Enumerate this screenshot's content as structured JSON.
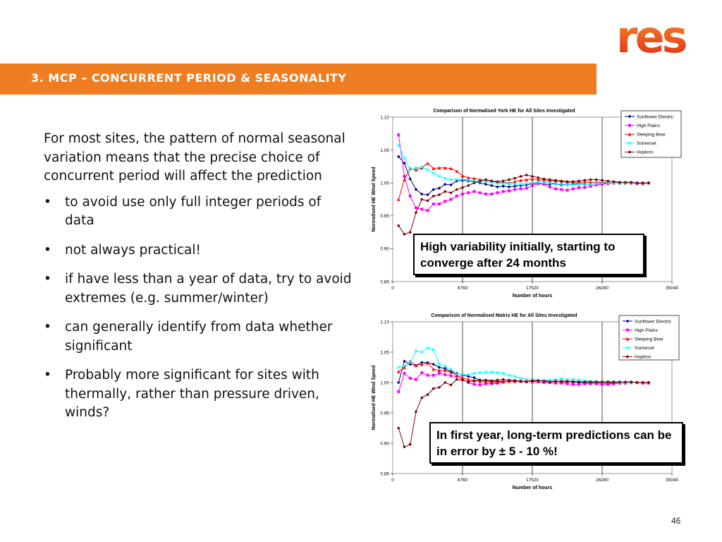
{
  "brand": {
    "logo_text": "res",
    "colors": {
      "orange": "#ef7d22",
      "logo_orange": "#f07f1f",
      "logo_red": "#e2231a"
    }
  },
  "header": {
    "title": "3.   MCP – CONCURRENT PERIOD & SEASONALITY"
  },
  "body": {
    "lead": "For most sites, the pattern of normal seasonal variation means that the precise choice of concurrent period will affect the prediction",
    "bullets": [
      "to avoid use only full integer periods of data",
      "not always practical!",
      "if have less than a year of data, try to avoid extremes (e.g. summer/winter)",
      "can generally identify from data whether significant",
      "Probably more significant for sites with thermally, rather than pressure driven, winds?"
    ]
  },
  "callouts": [
    "High variability initially, starting to converge after 24 months",
    "In first year, long-term predictions can be in error by ± 5 - 10 %!"
  ],
  "page_number": "46",
  "chart_data": [
    {
      "type": "line",
      "title": "Comparison of Normalised York HE for All Sites Investigated",
      "xlabel": "Number of hours",
      "ylabel": "Normalised HE Wind Speed",
      "xlim": [
        0,
        35040
      ],
      "ylim": [
        0.85,
        1.1
      ],
      "xticks": [
        0,
        8760,
        17520,
        26280,
        35040
      ],
      "xtick_labels": [
        "0",
        "8760",
        "17520",
        "26280",
        "35040"
      ],
      "yticks": [
        0.85,
        0.9,
        0.95,
        1.0,
        1.05,
        1.1
      ],
      "ytick_labels": [
        "0.85",
        "0.90",
        "0.95",
        "1.00",
        "1.05",
        "1.10"
      ],
      "grid": "vertical",
      "legend": "top-right",
      "x": [
        730,
        1460,
        2190,
        2920,
        3650,
        4380,
        5110,
        5840,
        6570,
        7300,
        8030,
        8760,
        9490,
        10220,
        10950,
        11680,
        12410,
        13140,
        13870,
        14600,
        15330,
        16060,
        16790,
        17520,
        18250,
        18980,
        19710,
        20440,
        21170,
        21900,
        22630,
        23360,
        24090,
        24820,
        25550,
        26280,
        27010,
        27740,
        28470,
        29200,
        29930,
        30660,
        31390,
        32120
      ],
      "series": [
        {
          "name": "Sunflower Electric",
          "color": "#000080",
          "marker": "diamond",
          "values": [
            1.04,
            1.03,
            1.006,
            0.99,
            0.983,
            0.982,
            0.99,
            0.992,
            0.998,
            0.997,
            1.003,
            1.004,
            1.003,
            1.002,
            1.0,
            0.998,
            0.996,
            0.994,
            0.995,
            0.994,
            0.995,
            0.996,
            0.997,
            0.999,
            1.0,
            0.998,
            0.998,
            0.999,
            0.997,
            0.998,
            0.998,
            0.999,
            0.998,
            0.998,
            0.999,
            0.999,
            1.0,
            1.0,
            1.001,
            1.0,
            1.0,
            1.0,
            0.999,
            1.0
          ]
        },
        {
          "name": "High Plains",
          "color": "#ff00ff",
          "marker": "square",
          "values": [
            1.073,
            1.01,
            0.98,
            0.962,
            0.96,
            0.958,
            0.968,
            0.968,
            0.972,
            0.975,
            0.98,
            0.983,
            0.985,
            0.987,
            0.985,
            0.983,
            0.983,
            0.985,
            0.987,
            0.988,
            0.99,
            0.991,
            0.992,
            0.996,
            0.999,
            0.998,
            0.994,
            0.991,
            0.99,
            0.989,
            0.991,
            0.993,
            0.993,
            0.995,
            0.997,
            0.998,
            0.999,
            1.0,
            1.0,
            1.0,
            1.0,
            0.999,
            0.999,
            1.0
          ]
        },
        {
          "name": "Sleeping Bear",
          "color": "#ff0000",
          "marker": "triangle",
          "values": [
            0.975,
            1.005,
            1.022,
            1.02,
            1.023,
            1.03,
            1.022,
            1.023,
            1.023,
            1.022,
            1.018,
            1.011,
            1.008,
            1.007,
            1.005,
            1.004,
            1.003,
            1.001,
            1.001,
            1.0,
            1.002,
            1.004,
            1.005,
            1.006,
            1.005,
            1.004,
            1.003,
            1.003,
            1.002,
            1.001,
            1.001,
            1.001,
            1.001,
            1.001,
            1.001,
            1.001,
            1.001,
            1.0,
            1.0,
            1.0,
            1.0,
            1.0,
            1.0,
            1.0
          ]
        },
        {
          "name": "Somerset",
          "color": "#00ffff",
          "marker": "cross",
          "values": [
            1.058,
            1.038,
            1.02,
            1.023,
            1.024,
            1.02,
            1.015,
            1.01,
            1.007,
            1.005,
            1.005,
            1.006,
            1.004,
            1.003,
            1.002,
            1.002,
            1.001,
            1.0,
            0.999,
            0.999,
            0.998,
            0.998,
            0.999,
            1.0,
            1.001,
            1.001,
            1.0,
            0.999,
            0.998,
            0.998,
            0.997,
            0.998,
            0.998,
            0.998,
            0.999,
            1.0,
            1.0,
            1.0,
            1.0,
            1.0,
            1.0,
            1.0,
            1.0,
            1.0
          ]
        },
        {
          "name": "Hopkins",
          "color": "#800000",
          "marker": "circle",
          "values": [
            0.935,
            0.922,
            0.925,
            0.955,
            0.975,
            0.973,
            0.98,
            0.982,
            0.987,
            0.985,
            0.99,
            0.993,
            0.996,
            1.0,
            1.003,
            1.005,
            1.003,
            1.002,
            1.003,
            1.005,
            1.007,
            1.01,
            1.012,
            1.01,
            1.008,
            1.006,
            1.005,
            1.004,
            1.003,
            1.002,
            1.002,
            1.003,
            1.004,
            1.005,
            1.005,
            1.004,
            1.003,
            1.002,
            1.001,
            1.001,
            1.001,
            1.0,
            1.0,
            1.0
          ]
        }
      ]
    },
    {
      "type": "line",
      "title": "Comparison of Normalised Matrix HE for All Sites Investigated",
      "xlabel": "Number of hours",
      "ylabel": "Normalised HE Wind Speed",
      "xlim": [
        0,
        35040
      ],
      "ylim": [
        0.85,
        1.1
      ],
      "xticks": [
        0,
        8760,
        17520,
        26280,
        35040
      ],
      "xtick_labels": [
        "0",
        "8760",
        "17520",
        "26280",
        "35040"
      ],
      "yticks": [
        0.85,
        0.9,
        0.95,
        1.0,
        1.05,
        1.1
      ],
      "ytick_labels": [
        "0.85",
        "0.90",
        "0.95",
        "1.00",
        "1.05",
        "1.10"
      ],
      "grid": "vertical",
      "legend": "top-right",
      "x": [
        730,
        1460,
        2190,
        2920,
        3650,
        4380,
        5110,
        5840,
        6570,
        7300,
        8030,
        8760,
        9490,
        10220,
        10950,
        11680,
        12410,
        13140,
        13870,
        14600,
        15330,
        16060,
        16790,
        17520,
        18250,
        18980,
        19710,
        20440,
        21170,
        21900,
        22630,
        23360,
        24090,
        24820,
        25550,
        26280,
        27010,
        27740,
        28470,
        29200,
        29930,
        30660,
        31390,
        32120
      ],
      "series": [
        {
          "name": "Sunflower Electric",
          "color": "#000080",
          "marker": "diamond",
          "values": [
            1.0,
            1.035,
            1.03,
            1.028,
            1.033,
            1.033,
            1.03,
            1.025,
            1.023,
            1.018,
            1.015,
            1.012,
            1.01,
            1.008,
            1.004,
            1.003,
            1.002,
            1.002,
            1.002,
            1.002,
            1.002,
            1.002,
            1.002,
            1.002,
            1.003,
            1.003,
            1.002,
            1.002,
            1.001,
            1.001,
            1.001,
            1.0,
            1.0,
            1.0,
            1.0,
            0.999,
            0.999,
            0.999,
            0.999,
            1.0,
            1.0,
            1.0,
            1.0,
            1.0
          ]
        },
        {
          "name": "High Plains",
          "color": "#ff00ff",
          "marker": "square",
          "values": [
            0.985,
            1.015,
            1.007,
            1.005,
            1.016,
            1.012,
            1.012,
            1.015,
            1.013,
            1.011,
            1.01,
            1.005,
            1.0,
            0.997,
            0.996,
            0.998,
            0.998,
            0.999,
            1.001,
            1.002,
            1.003,
            1.002,
            1.002,
            1.001,
            1.001,
            1.0,
            1.0,
            0.999,
            0.999,
            0.998,
            0.997,
            0.997,
            0.998,
            0.998,
            0.998,
            0.997,
            0.997,
            0.998,
            0.999,
            0.999,
            1.0,
            1.0,
            0.999,
            0.999
          ]
        },
        {
          "name": "Sleeping Bear",
          "color": "#ff0000",
          "marker": "triangle",
          "values": [
            1.018,
            1.025,
            1.035,
            1.028,
            1.03,
            1.032,
            1.022,
            1.02,
            1.02,
            1.017,
            1.012,
            1.008,
            1.005,
            1.003,
            1.002,
            1.001,
            1.0,
            1.0,
            1.001,
            1.002,
            1.002,
            1.002,
            1.002,
            1.003,
            1.003,
            1.003,
            1.002,
            1.002,
            1.002,
            1.002,
            1.002,
            1.001,
            1.001,
            1.001,
            1.001,
            1.001,
            1.0,
            1.0,
            1.0,
            1.0,
            1.0,
            1.0,
            1.0,
            1.0
          ]
        },
        {
          "name": "Somerset",
          "color": "#00ffff",
          "marker": "cross",
          "values": [
            1.025,
            1.027,
            1.033,
            1.052,
            1.05,
            1.057,
            1.054,
            1.03,
            1.027,
            1.022,
            1.014,
            1.013,
            1.013,
            1.015,
            1.016,
            1.017,
            1.017,
            1.016,
            1.015,
            1.012,
            1.01,
            1.007,
            1.005,
            1.005,
            1.004,
            1.004,
            1.004,
            1.005,
            1.006,
            1.005,
            1.005,
            1.004,
            1.003,
            1.002,
            1.002,
            1.001,
            1.001,
            1.001,
            1.0,
            1.0,
            1.0,
            1.0,
            1.0,
            1.0
          ]
        },
        {
          "name": "Hopkins",
          "color": "#800000",
          "marker": "circle",
          "values": [
            0.925,
            0.894,
            0.898,
            0.952,
            0.975,
            0.98,
            0.99,
            0.992,
            1.0,
            0.996,
            1.005,
            1.004,
            1.001,
            1.003,
            1.004,
            1.004,
            1.003,
            1.004,
            1.005,
            1.004,
            1.003,
            1.002,
            1.001,
            1.003,
            1.003,
            1.002,
            1.001,
            1.002,
            1.002,
            1.002,
            1.001,
            1.001,
            1.001,
            1.001,
            1.001,
            1.001,
            1.001,
            1.001,
            1.001,
            1.001,
            1.001,
            1.0,
            1.0,
            1.0
          ]
        }
      ]
    }
  ]
}
